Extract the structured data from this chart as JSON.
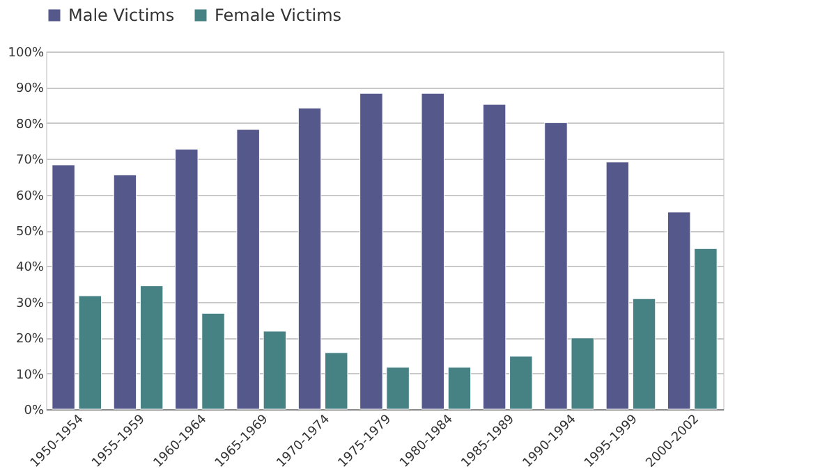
{
  "chart_data": {
    "type": "bar",
    "categories": [
      "1950-1954",
      "1955-1959",
      "1960-1964",
      "1965-1969",
      "1970-1974",
      "1975-1979",
      "1980-1984",
      "1985-1989",
      "1990-1994",
      "1995-1999",
      "2000-2002"
    ],
    "series": [
      {
        "name": "Male Victims",
        "color": "#55588a",
        "values": [
          68.3,
          65.5,
          72.7,
          78.2,
          84.2,
          88.3,
          88.3,
          85.2,
          80.1,
          69.1,
          55.1
        ]
      },
      {
        "name": "Female Victims",
        "color": "#468184",
        "values": [
          31.7,
          34.5,
          26.8,
          21.8,
          15.8,
          11.7,
          11.7,
          14.8,
          19.9,
          30.9,
          44.9
        ]
      }
    ],
    "ylim": [
      0,
      100
    ],
    "yticks": [
      {
        "value": 0,
        "label": "0%"
      },
      {
        "value": 10,
        "label": "10%"
      },
      {
        "value": 20,
        "label": "20%"
      },
      {
        "value": 30,
        "label": "30%"
      },
      {
        "value": 40,
        "label": "40%"
      },
      {
        "value": 50,
        "label": "50%"
      },
      {
        "value": 60,
        "label": "60%"
      },
      {
        "value": 70,
        "label": "70%"
      },
      {
        "value": 80,
        "label": "80%"
      },
      {
        "value": 90,
        "label": "90%"
      },
      {
        "value": 100,
        "label": "100%"
      }
    ],
    "grid": "y",
    "legend": "top"
  }
}
